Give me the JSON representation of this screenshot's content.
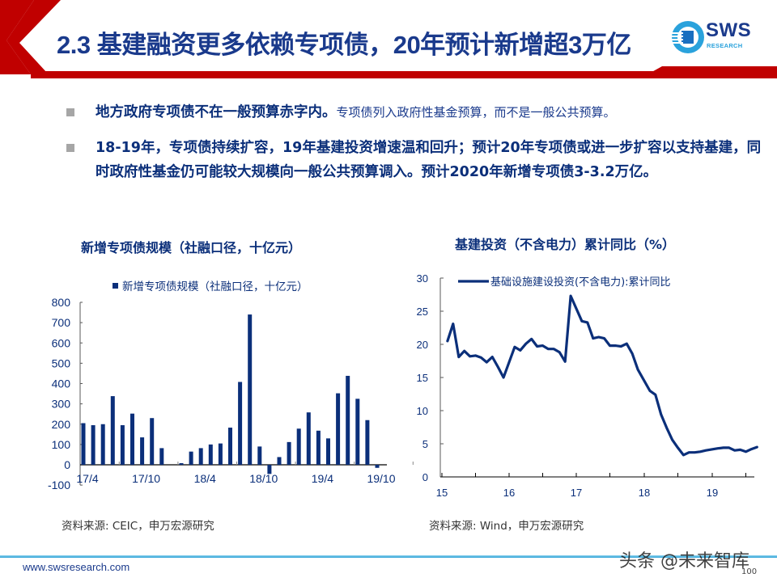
{
  "header": {
    "title": "2.3 基建融资更多依赖专项债，20年预计新增超3万亿",
    "logo_text": "SWS",
    "logo_sub": "RESEARCH",
    "accent_red": "#c00000",
    "brand_blue": "#1a3a8c"
  },
  "bullets": [
    {
      "strong": "地方政府专项债不在一般预算赤字内。",
      "normal": "专项债列入政府性基金预算，而不是一般公共预算。"
    },
    {
      "strong": "18-19年，专项债持续扩容，19年基建投资增速温和回升；预计20年专项债或进一步扩容以支持基建，同时政府性基金仍可能较大规模向一般公共预算调入。预计2020年新增专项债3-3.2万亿。",
      "normal": ""
    }
  ],
  "left_chart": {
    "heading": "新增专项债规模（社融口径，十亿元）",
    "source": "资料来源: CEIC，申万宏源研究"
  },
  "right_chart": {
    "heading": "基建投资（不含电力）累计同比（%）",
    "source": "资料来源: Wind，申万宏源研究"
  },
  "chart_data": [
    {
      "type": "bar",
      "title": "新增专项债规模（社融口径，十亿元）",
      "legend": [
        "新增专项债规模（社融口径，十亿元）"
      ],
      "legend_position": "top",
      "xlabel": "",
      "ylabel": "",
      "ylim": [
        -100,
        800
      ],
      "yticks": [
        -100,
        0,
        100,
        200,
        300,
        400,
        500,
        600,
        700,
        800
      ],
      "xtick_labels": [
        "17/4",
        "17/10",
        "18/4",
        "18/10",
        "19/4",
        "19/10"
      ],
      "grid": false,
      "color": "#0b2f7a",
      "categories": [
        "17/4",
        "17/5",
        "17/6",
        "17/7",
        "17/8",
        "17/9",
        "17/10",
        "17/11",
        "17/12",
        "18/1",
        "18/2",
        "18/3",
        "18/4",
        "18/5",
        "18/6",
        "18/7",
        "18/8",
        "18/9",
        "18/10",
        "18/11",
        "18/12",
        "19/1",
        "19/2",
        "19/3",
        "19/4",
        "19/5",
        "19/6",
        "19/7",
        "19/8",
        "19/9",
        "19/10"
      ],
      "values": [
        205,
        195,
        200,
        338,
        195,
        252,
        135,
        230,
        82,
        0,
        8,
        65,
        82,
        100,
        105,
        183,
        408,
        740,
        90,
        -45,
        38,
        112,
        178,
        258,
        168,
        130,
        352,
        438,
        325,
        220,
        -15
      ]
    },
    {
      "type": "line",
      "title": "基建投资（不含电力）累计同比（%）",
      "legend": [
        "基础设施建设投资(不含电力):累计同比"
      ],
      "legend_position": "top",
      "xlabel": "",
      "ylabel": "",
      "ylim": [
        0,
        30
      ],
      "yticks": [
        0,
        5,
        10,
        15,
        20,
        25,
        30
      ],
      "xtick_labels": [
        "15",
        "16",
        "17",
        "18",
        "19"
      ],
      "grid": false,
      "color": "#0b2f7a",
      "x": [
        "15/2",
        "15/3",
        "15/4",
        "15/5",
        "15/6",
        "15/7",
        "15/8",
        "15/9",
        "15/10",
        "15/11",
        "15/12",
        "16/2",
        "16/3",
        "16/4",
        "16/5",
        "16/6",
        "16/7",
        "16/8",
        "16/9",
        "16/10",
        "16/11",
        "16/12",
        "17/2",
        "17/3",
        "17/4",
        "17/5",
        "17/6",
        "17/7",
        "17/8",
        "17/9",
        "17/10",
        "17/11",
        "17/12",
        "18/2",
        "18/3",
        "18/4",
        "18/5",
        "18/6",
        "18/7",
        "18/8",
        "18/9",
        "18/10",
        "18/11",
        "18/12",
        "19/2",
        "19/3",
        "19/4",
        "19/5",
        "19/6",
        "19/7",
        "19/8",
        "19/9"
      ],
      "values": [
        20.5,
        23.1,
        18.1,
        19.0,
        18.2,
        18.3,
        18.0,
        17.3,
        18.1,
        16.6,
        15.0,
        19.6,
        19.1,
        20.1,
        20.8,
        19.7,
        19.8,
        19.3,
        19.3,
        18.8,
        17.4,
        27.3,
        23.5,
        23.3,
        20.9,
        21.1,
        20.9,
        19.8,
        19.8,
        19.7,
        20.1,
        18.6,
        16.2,
        13.0,
        12.4,
        9.4,
        7.4,
        5.6,
        4.4,
        3.3,
        3.7,
        3.7,
        3.8,
        4.0,
        4.3,
        4.4,
        4.4,
        4.0,
        4.1,
        3.8,
        4.2,
        4.5
      ]
    }
  ],
  "footer": {
    "url": "www.swsresearch.com",
    "page_number": "100",
    "watermark": "头条 @未来智库"
  }
}
